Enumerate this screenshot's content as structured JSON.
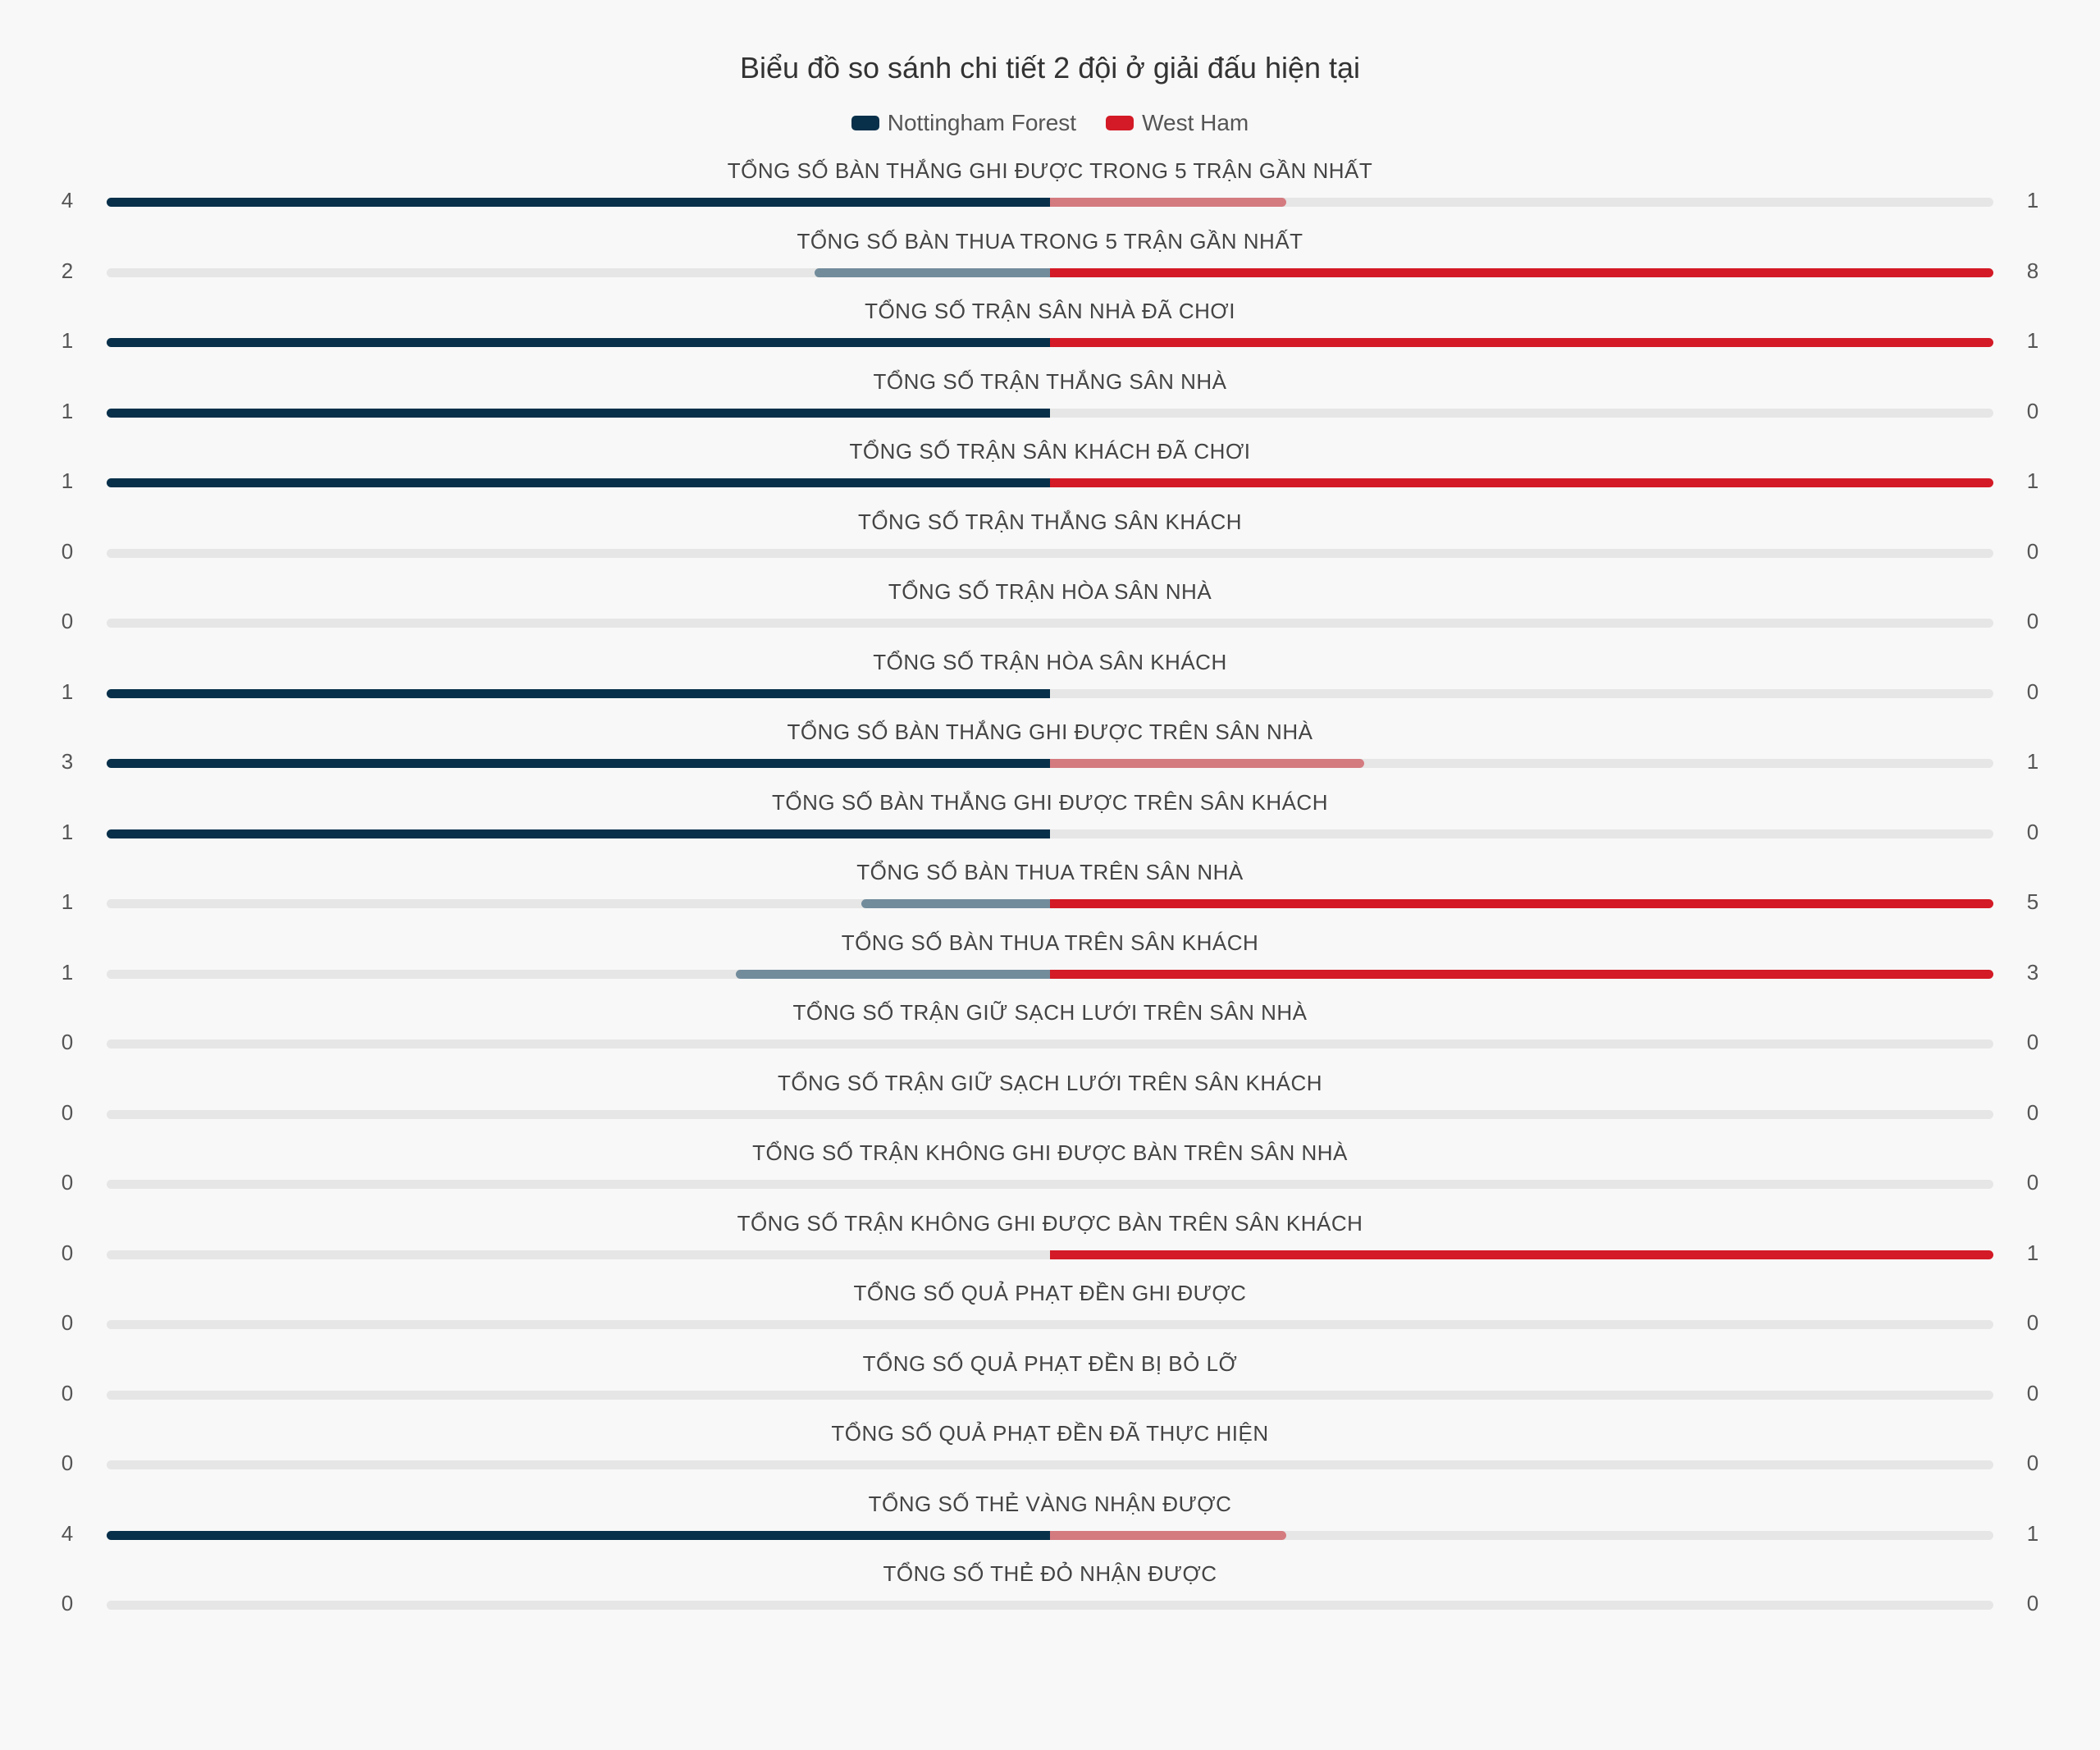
{
  "chart_data": {
    "type": "bar",
    "title": "Biểu đồ so sánh chi tiết 2 đội ở giải đấu hiện tại",
    "series": [
      {
        "name": "Nottingham Forest",
        "color": "#08304a",
        "light_color": "#728c9c"
      },
      {
        "name": "West Ham",
        "color": "#d31a26",
        "light_color": "#d47b80"
      }
    ],
    "rows": [
      {
        "label": "TỔNG SỐ BÀN THẮNG GHI ĐƯỢC TRONG 5 TRẬN GẦN NHẤT",
        "home": 4,
        "away": 1
      },
      {
        "label": "TỔNG SỐ BÀN THUA TRONG 5 TRẬN GẦN NHẤT",
        "home": 2,
        "away": 8
      },
      {
        "label": "TỔNG SỐ TRẬN SÂN NHÀ ĐÃ CHƠI",
        "home": 1,
        "away": 1
      },
      {
        "label": "TỔNG SỐ TRẬN THẮNG SÂN NHÀ",
        "home": 1,
        "away": 0
      },
      {
        "label": "TỔNG SỐ TRẬN SÂN KHÁCH ĐÃ CHƠI",
        "home": 1,
        "away": 1
      },
      {
        "label": "TỔNG SỐ TRẬN THẮNG SÂN KHÁCH",
        "home": 0,
        "away": 0
      },
      {
        "label": "TỔNG SỐ TRẬN HÒA SÂN NHÀ",
        "home": 0,
        "away": 0
      },
      {
        "label": "TỔNG SỐ TRẬN HÒA SÂN KHÁCH",
        "home": 1,
        "away": 0
      },
      {
        "label": "TỔNG SỐ BÀN THẮNG GHI ĐƯỢC TRÊN SÂN NHÀ",
        "home": 3,
        "away": 1
      },
      {
        "label": "TỔNG SỐ BÀN THẮNG GHI ĐƯỢC TRÊN SÂN KHÁCH",
        "home": 1,
        "away": 0
      },
      {
        "label": "TỔNG SỐ BÀN THUA TRÊN SÂN NHÀ",
        "home": 1,
        "away": 5
      },
      {
        "label": "TỔNG SỐ BÀN THUA TRÊN SÂN KHÁCH",
        "home": 1,
        "away": 3
      },
      {
        "label": "TỔNG SỐ TRẬN GIỮ SẠCH LƯỚI TRÊN SÂN NHÀ",
        "home": 0,
        "away": 0
      },
      {
        "label": "TỔNG SỐ TRẬN GIỮ SẠCH LƯỚI TRÊN SÂN KHÁCH",
        "home": 0,
        "away": 0
      },
      {
        "label": "TỔNG SỐ TRẬN KHÔNG GHI ĐƯỢC BÀN TRÊN SÂN NHÀ",
        "home": 0,
        "away": 0
      },
      {
        "label": "TỔNG SỐ TRẬN KHÔNG GHI ĐƯỢC BÀN TRÊN SÂN KHÁCH",
        "home": 0,
        "away": 1
      },
      {
        "label": "TỔNG SỐ QUẢ PHẠT ĐỀN GHI ĐƯỢC",
        "home": 0,
        "away": 0
      },
      {
        "label": "TỔNG SỐ QUẢ PHẠT ĐỀN BỊ BỎ LỠ",
        "home": 0,
        "away": 0
      },
      {
        "label": "TỔNG SỐ QUẢ PHẠT ĐỀN ĐÃ THỰC HIỆN",
        "home": 0,
        "away": 0
      },
      {
        "label": "TỔNG SỐ THẺ VÀNG NHẬN ĐƯỢC",
        "home": 4,
        "away": 1
      },
      {
        "label": "TỔNG SỐ THẺ ĐỎ NHẬN ĐƯỢC",
        "home": 0,
        "away": 0
      }
    ]
  }
}
